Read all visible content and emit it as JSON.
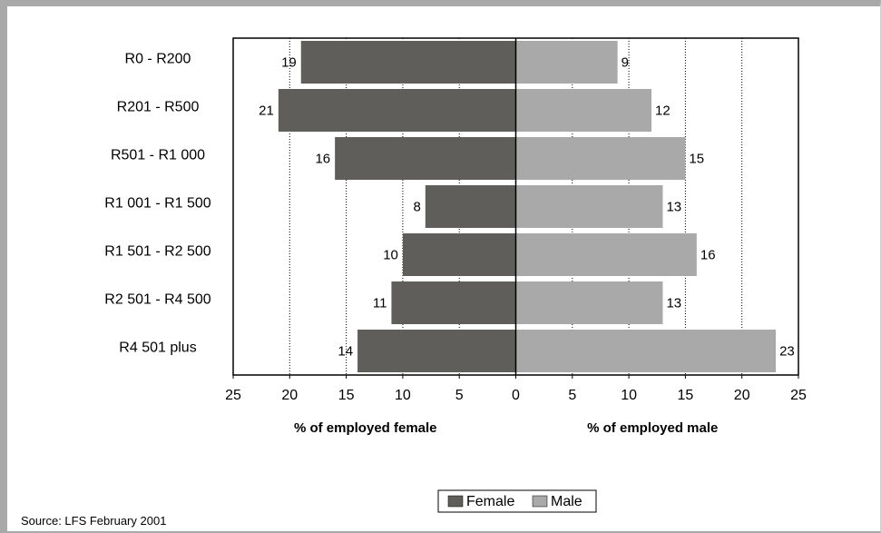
{
  "chart_data": {
    "type": "bar",
    "orientation": "horizontal-diverging",
    "categories": [
      "R0 - R200",
      "R201 - R500",
      "R501 - R1 000",
      "R1 001 - R1 500",
      "R1 501 - R2 500",
      "R2 501 - R4 500",
      "R4 501 plus"
    ],
    "series": [
      {
        "name": "Female",
        "values": [
          19,
          21,
          16,
          8,
          10,
          11,
          14
        ],
        "color": "#5f5e5a"
      },
      {
        "name": "Male",
        "values": [
          9,
          12,
          15,
          13,
          16,
          13,
          23
        ],
        "color": "#a9a9a9"
      }
    ],
    "xlim": [
      -25,
      25
    ],
    "ticks": [
      "25",
      "20",
      "15",
      "10",
      "5",
      "0",
      "5",
      "10",
      "15",
      "20",
      "25"
    ],
    "xlabel_left": "% of employed female",
    "xlabel_right": "% of employed male",
    "grid": "vertical dotted",
    "legend": "bottom-center"
  },
  "source": "Source: LFS February 2001"
}
